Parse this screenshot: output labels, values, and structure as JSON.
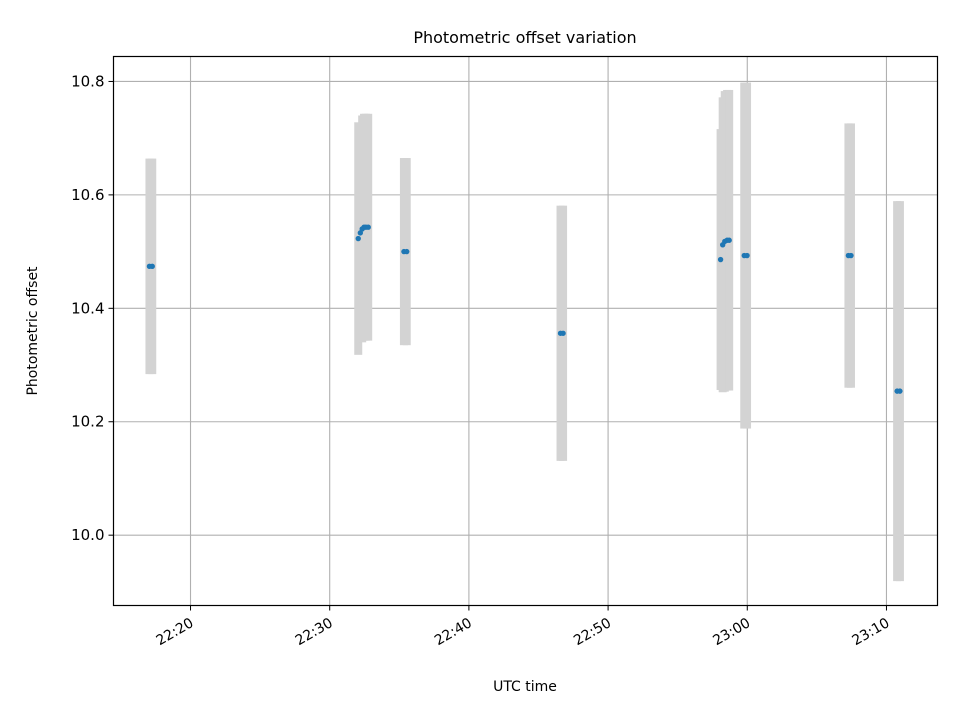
{
  "chart_data": {
    "type": "scatter",
    "title": "Photometric offset variation",
    "xlabel": "UTC time",
    "ylabel": "Photometric offset",
    "grid": true,
    "x_ticks": [
      "22:20",
      "22:30",
      "22:40",
      "22:50",
      "23:00",
      "23:10"
    ],
    "y_ticks": [
      "10.0",
      "10.2",
      "10.4",
      "10.6",
      "10.8"
    ],
    "xlim": [
      "22:14:28",
      "23:13:40"
    ],
    "ylim": [
      9.876,
      10.844
    ],
    "series": [
      {
        "points": [
          {
            "x": "22:17:03",
            "y": 10.474,
            "err": 0.19
          },
          {
            "x": "22:17:15",
            "y": 10.474,
            "err": 0.19
          },
          {
            "x": "22:32:03",
            "y": 10.523,
            "err": 0.205
          },
          {
            "x": "22:32:12",
            "y": 10.533,
            "err": 0.19
          },
          {
            "x": "22:32:20",
            "y": 10.54,
            "err": 0.2
          },
          {
            "x": "22:32:28",
            "y": 10.543,
            "err": 0.2
          },
          {
            "x": "22:32:36",
            "y": 10.543,
            "err": 0.2
          },
          {
            "x": "22:32:46",
            "y": 10.543,
            "err": 0.2
          },
          {
            "x": "22:35:20",
            "y": 10.5,
            "err": 0.165
          },
          {
            "x": "22:35:32",
            "y": 10.5,
            "err": 0.165
          },
          {
            "x": "22:46:35",
            "y": 10.356,
            "err": 0.225
          },
          {
            "x": "22:46:46",
            "y": 10.356,
            "err": 0.225
          },
          {
            "x": "22:58:05",
            "y": 10.486,
            "err": 0.23
          },
          {
            "x": "22:58:14",
            "y": 10.512,
            "err": 0.26
          },
          {
            "x": "22:58:23",
            "y": 10.518,
            "err": 0.265
          },
          {
            "x": "22:58:33",
            "y": 10.52,
            "err": 0.265
          },
          {
            "x": "22:58:42",
            "y": 10.52,
            "err": 0.265
          },
          {
            "x": "22:59:47",
            "y": 10.493,
            "err": 0.305
          },
          {
            "x": "22:59:59",
            "y": 10.493,
            "err": 0.305
          },
          {
            "x": "23:07:16",
            "y": 10.493,
            "err": 0.233
          },
          {
            "x": "23:07:27",
            "y": 10.493,
            "err": 0.233
          },
          {
            "x": "23:10:46",
            "y": 10.254,
            "err": 0.335
          },
          {
            "x": "23:10:58",
            "y": 10.254,
            "err": 0.335
          }
        ]
      }
    ],
    "colors": {
      "marker": "#1f77b4",
      "errorbar": "#d3d3d3",
      "grid": "#b0b0b0"
    }
  }
}
